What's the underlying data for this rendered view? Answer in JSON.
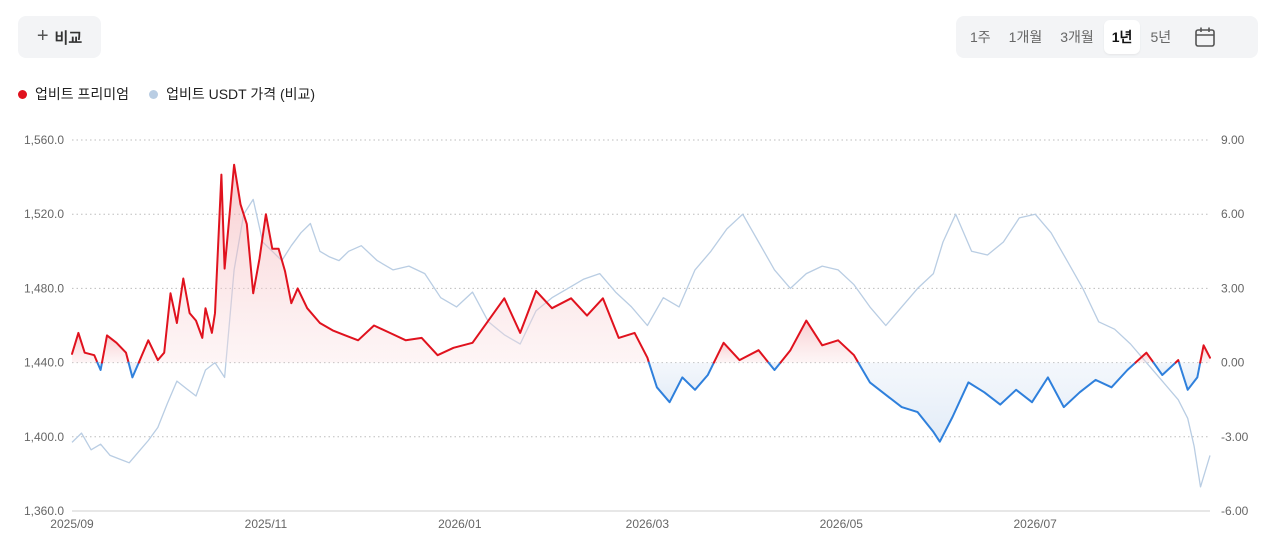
{
  "header": {
    "compare_label": "비교",
    "ranges": [
      "1주",
      "1개월",
      "3개월",
      "1년",
      "5년"
    ],
    "active_range": "1년"
  },
  "legend": [
    {
      "label": "업비트 프리미엄",
      "color": "#e0121e"
    },
    {
      "label": "업비트 USDT 가격 (비교)",
      "color": "#b9cde3"
    }
  ],
  "colors": {
    "premium_positive": "#e0121e",
    "premium_negative": "#2f80dc",
    "usdt_price": "#b9cde3"
  },
  "chart_data": {
    "type": "line",
    "x_tick_labels": [
      "2025/09",
      "2025/11",
      "2026/01",
      "2026/03",
      "2026/05",
      "2026/07"
    ],
    "left_axis": {
      "ticks": [
        "1,360.0",
        "1,400.0",
        "1,440.0",
        "1,480.0",
        "1,520.0",
        "1,560.0"
      ],
      "ylim": [
        1360,
        1560
      ]
    },
    "right_axis": {
      "ticks": [
        "-6.00",
        "-3.00",
        "0.00",
        "3.00",
        "6.00",
        "9.00"
      ],
      "ylim": [
        -6,
        9
      ]
    },
    "grid": true,
    "legend_position": "top-left",
    "x_start": "2025-09-01",
    "x_end": "2026-08-25",
    "series": [
      {
        "name": "업비트 프리미엄",
        "axis": "right",
        "x": [
          "2025-09-01",
          "2025-09-03",
          "2025-09-05",
          "2025-09-08",
          "2025-09-10",
          "2025-09-12",
          "2025-09-15",
          "2025-09-18",
          "2025-09-20",
          "2025-09-23",
          "2025-09-25",
          "2025-09-28",
          "2025-09-30",
          "2025-10-02",
          "2025-10-04",
          "2025-10-06",
          "2025-10-08",
          "2025-10-10",
          "2025-10-12",
          "2025-10-13",
          "2025-10-15",
          "2025-10-16",
          "2025-10-18",
          "2025-10-19",
          "2025-10-20",
          "2025-10-22",
          "2025-10-24",
          "2025-10-26",
          "2025-10-28",
          "2025-10-30",
          "2025-11-01",
          "2025-11-03",
          "2025-11-05",
          "2025-11-07",
          "2025-11-09",
          "2025-11-11",
          "2025-11-14",
          "2025-11-18",
          "2025-11-22",
          "2025-11-26",
          "2025-11-30",
          "2025-12-05",
          "2025-12-10",
          "2025-12-15",
          "2025-12-20",
          "2025-12-25",
          "2025-12-30",
          "2026-01-05",
          "2026-01-10",
          "2026-01-15",
          "2026-01-20",
          "2026-01-25",
          "2026-01-30",
          "2026-02-05",
          "2026-02-10",
          "2026-02-15",
          "2026-02-20",
          "2026-02-25",
          "2026-03-01",
          "2026-03-04",
          "2026-03-08",
          "2026-03-12",
          "2026-03-16",
          "2026-03-20",
          "2026-03-25",
          "2026-03-30",
          "2026-04-05",
          "2026-04-10",
          "2026-04-15",
          "2026-04-20",
          "2026-04-25",
          "2026-04-30",
          "2026-05-05",
          "2026-05-10",
          "2026-05-15",
          "2026-05-20",
          "2026-05-25",
          "2026-05-30",
          "2026-06-01",
          "2026-06-05",
          "2026-06-10",
          "2026-06-15",
          "2026-06-20",
          "2026-06-25",
          "2026-06-30",
          "2026-07-05",
          "2026-07-10",
          "2026-07-15",
          "2026-07-20",
          "2026-07-25",
          "2026-07-30",
          "2026-08-05",
          "2026-08-10",
          "2026-08-15",
          "2026-08-18",
          "2026-08-21",
          "2026-08-23",
          "2026-08-25"
        ],
        "values": [
          0.35,
          1.2,
          0.4,
          0.3,
          -0.3,
          1.1,
          0.8,
          0.4,
          -0.6,
          0.3,
          0.9,
          0.1,
          0.4,
          2.8,
          1.6,
          3.4,
          2.0,
          1.7,
          1.0,
          2.2,
          1.2,
          2.0,
          7.6,
          3.8,
          5.2,
          8.0,
          6.4,
          5.6,
          2.8,
          4.2,
          6.0,
          4.6,
          4.6,
          3.7,
          2.4,
          3.0,
          2.2,
          1.6,
          1.3,
          1.1,
          0.9,
          1.5,
          1.2,
          0.9,
          1.0,
          0.3,
          0.6,
          0.8,
          1.7,
          2.6,
          1.2,
          2.9,
          2.2,
          2.6,
          1.9,
          2.6,
          1.0,
          1.2,
          0.2,
          -1.0,
          -1.6,
          -0.6,
          -1.1,
          -0.5,
          0.8,
          0.1,
          0.5,
          -0.3,
          0.5,
          1.7,
          0.7,
          0.9,
          0.3,
          -0.8,
          -1.3,
          -1.8,
          -2.0,
          -2.8,
          -3.2,
          -2.2,
          -0.8,
          -1.2,
          -1.7,
          -1.1,
          -1.6,
          -0.6,
          -1.8,
          -1.2,
          -0.7,
          -1.0,
          -0.3,
          0.4,
          -0.5,
          0.1,
          -1.1,
          -0.6,
          0.7,
          0.2
        ]
      },
      {
        "name": "업비트 USDT 가격 (비교)",
        "axis": "left",
        "x": [
          "2025-09-01",
          "2025-09-04",
          "2025-09-07",
          "2025-09-10",
          "2025-09-13",
          "2025-09-16",
          "2025-09-19",
          "2025-09-22",
          "2025-09-25",
          "2025-09-28",
          "2025-10-01",
          "2025-10-04",
          "2025-10-07",
          "2025-10-10",
          "2025-10-13",
          "2025-10-16",
          "2025-10-19",
          "2025-10-22",
          "2025-10-25",
          "2025-10-28",
          "2025-10-31",
          "2025-11-03",
          "2025-11-06",
          "2025-11-09",
          "2025-11-12",
          "2025-11-15",
          "2025-11-18",
          "2025-11-21",
          "2025-11-24",
          "2025-11-27",
          "2025-12-01",
          "2025-12-06",
          "2025-12-11",
          "2025-12-16",
          "2025-12-21",
          "2025-12-26",
          "2025-12-31",
          "2026-01-05",
          "2026-01-10",
          "2026-01-15",
          "2026-01-20",
          "2026-01-25",
          "2026-01-30",
          "2026-02-04",
          "2026-02-09",
          "2026-02-14",
          "2026-02-19",
          "2026-02-24",
          "2026-03-01",
          "2026-03-06",
          "2026-03-11",
          "2026-03-16",
          "2026-03-21",
          "2026-03-26",
          "2026-03-31",
          "2026-04-05",
          "2026-04-10",
          "2026-04-15",
          "2026-04-20",
          "2026-04-25",
          "2026-04-30",
          "2026-05-05",
          "2026-05-10",
          "2026-05-15",
          "2026-05-20",
          "2026-05-25",
          "2026-05-30",
          "2026-06-02",
          "2026-06-06",
          "2026-06-11",
          "2026-06-16",
          "2026-06-21",
          "2026-06-26",
          "2026-07-01",
          "2026-07-06",
          "2026-07-11",
          "2026-07-16",
          "2026-07-21",
          "2026-07-26",
          "2026-07-31",
          "2026-08-05",
          "2026-08-10",
          "2026-08-15",
          "2026-08-18",
          "2026-08-20",
          "2026-08-22",
          "2026-08-25"
        ],
        "values": [
          1397,
          1402,
          1393,
          1396,
          1390,
          1388,
          1386,
          1392,
          1398,
          1405,
          1418,
          1430,
          1426,
          1422,
          1436,
          1440,
          1432,
          1490,
          1520,
          1528,
          1505,
          1500,
          1495,
          1503,
          1510,
          1515,
          1500,
          1497,
          1495,
          1500,
          1503,
          1495,
          1490,
          1492,
          1488,
          1475,
          1470,
          1478,
          1462,
          1455,
          1450,
          1468,
          1475,
          1480,
          1485,
          1488,
          1478,
          1470,
          1460,
          1475,
          1470,
          1490,
          1500,
          1512,
          1520,
          1505,
          1490,
          1480,
          1488,
          1492,
          1490,
          1482,
          1470,
          1460,
          1470,
          1480,
          1488,
          1505,
          1520,
          1500,
          1498,
          1505,
          1518,
          1520,
          1510,
          1495,
          1480,
          1462,
          1458,
          1450,
          1440,
          1430,
          1420,
          1410,
          1395,
          1373,
          1390
        ]
      }
    ]
  }
}
